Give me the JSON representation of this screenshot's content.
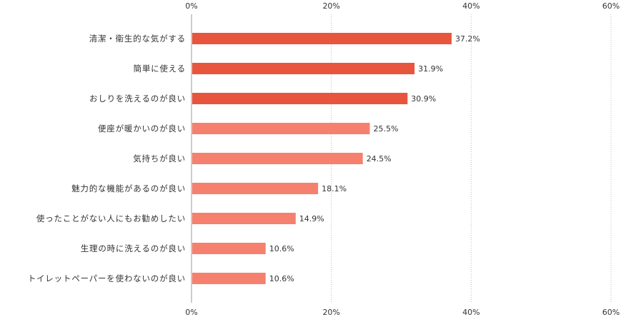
{
  "chart_data": {
    "type": "bar",
    "orientation": "horizontal",
    "title": "",
    "xlabel": "",
    "ylabel": "",
    "xlim": [
      0,
      60
    ],
    "x_ticks": [
      "0%",
      "20%",
      "40%",
      "60%"
    ],
    "x_tick_values": [
      0,
      20,
      40,
      60
    ],
    "tick_labels_top_and_bottom": true,
    "grid": "vertical dotted",
    "categories": [
      "清潔・衛生的な気がする",
      "簡単に使える",
      "おしりを洗えるのが良い",
      "便座が暖かいのが良い",
      "気持ちが良い",
      "魅力的な機能があるのが良い",
      "使ったことがない人にもお勧めしたい",
      "生理の時に洗えるのが良い",
      "トイレットペーパーを使わないのが良い"
    ],
    "values": [
      37.2,
      31.9,
      30.9,
      25.5,
      24.5,
      18.1,
      14.9,
      10.6,
      10.6
    ],
    "value_labels": [
      "37.2%",
      "31.9%",
      "30.9%",
      "25.5%",
      "24.5%",
      "18.1%",
      "14.9%",
      "10.6%",
      "10.6%"
    ],
    "colors": {
      "top3": "#e8553d",
      "others": "#f5806e",
      "grid": "#bbbbbb",
      "axis": "#999999",
      "text": "#333333"
    }
  }
}
